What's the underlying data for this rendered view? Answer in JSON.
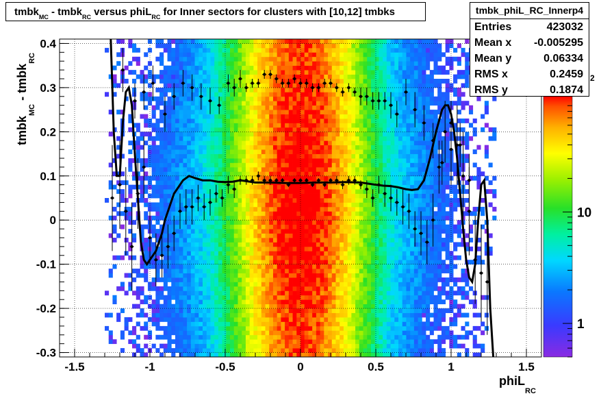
{
  "chart_data": {
    "type": "heatmap",
    "title_parts": [
      "tmbk",
      "MC",
      " - tmbk",
      "RC",
      " versus phiL",
      "RC",
      " for Inner sectors for clusters with [10,12] tmbks"
    ],
    "xlabel_main": "phiL",
    "xlabel_sub": "RC",
    "ylabel_parts": [
      "tmbk",
      "MC",
      " - tmbk",
      "RC"
    ],
    "xlim": [
      -1.6,
      1.6
    ],
    "ylim": [
      -0.31,
      0.41
    ],
    "x_ticks": [
      -1.5,
      -1,
      -0.5,
      0,
      0.5,
      1,
      1.5
    ],
    "x_tick_labels": [
      "-1.5",
      "-1",
      "-0.5",
      "0",
      "0.5",
      "1",
      "1.5"
    ],
    "y_ticks": [
      -0.3,
      -0.2,
      -0.1,
      0,
      0.1,
      0.2,
      0.3,
      0.4
    ],
    "y_tick_labels": [
      "-0.3",
      "-0.2",
      "-0.1",
      "0",
      "0.1",
      "0.2",
      "0.3",
      "0.4"
    ],
    "colorbar_log": true,
    "colorbar_range": [
      0.5,
      110
    ],
    "colorbar_ticks": [
      1,
      10
    ],
    "colorbar_tick_labels": [
      "1",
      "10"
    ],
    "colorbar_exponent_label": "2",
    "grid": true,
    "stats": {
      "name": "tmbk_phiL_RC_Innerp4",
      "rows": [
        {
          "label": "Entries",
          "value": "423032"
        },
        {
          "label": "Mean x",
          "value": "-0.005295"
        },
        {
          "label": "Mean y",
          "value": "0.06334"
        },
        {
          "label": "RMS x",
          "value": "0.2459"
        },
        {
          "label": "RMS y",
          "value": "0.1874"
        }
      ]
    },
    "profile_lower": {
      "x": [
        -1.25,
        -1.2,
        -1.16,
        -1.12,
        -1.08,
        -1.04,
        -1.0,
        -0.96,
        -0.92,
        -0.88,
        -0.84,
        -0.8,
        -0.76,
        -0.72,
        -0.68,
        -0.64,
        -0.6,
        -0.56,
        -0.52,
        -0.48,
        -0.44,
        -0.4,
        -0.36,
        -0.32,
        -0.28,
        -0.24,
        -0.2,
        -0.16,
        -0.12,
        -0.08,
        -0.04,
        0.0,
        0.04,
        0.08,
        0.12,
        0.16,
        0.2,
        0.24,
        0.28,
        0.32,
        0.36,
        0.4,
        0.44,
        0.48,
        0.52,
        0.56,
        0.6,
        0.64,
        0.68,
        0.72,
        0.76,
        0.8,
        0.84,
        0.88,
        0.92,
        0.96,
        1.0,
        1.04,
        1.08,
        1.12,
        1.16,
        1.2,
        1.24
      ],
      "y": [
        0.05,
        0.08,
        0.02,
        -0.06,
        0.06,
        0.12,
        -0.04,
        -0.09,
        -0.08,
        -0.06,
        -0.03,
        0.02,
        0.03,
        0.03,
        0.05,
        0.03,
        0.04,
        0.06,
        0.05,
        0.08,
        0.07,
        0.09,
        0.09,
        0.09,
        0.1,
        0.09,
        0.09,
        0.09,
        0.09,
        0.08,
        0.09,
        0.09,
        0.09,
        0.08,
        0.09,
        0.08,
        0.09,
        0.09,
        0.08,
        0.09,
        0.09,
        0.08,
        0.07,
        0.05,
        0.08,
        0.06,
        0.05,
        0.04,
        0.03,
        0.02,
        -0.02,
        -0.03,
        -0.05,
        0.0,
        0.12,
        0.2,
        0.16,
        0.17,
        0.1,
        0.02,
        -0.09,
        -0.12,
        -0.14
      ],
      "yerr": [
        0.12,
        0.1,
        0.1,
        0.1,
        0.08,
        0.07,
        0.06,
        0.06,
        0.05,
        0.05,
        0.04,
        0.04,
        0.04,
        0.04,
        0.03,
        0.03,
        0.03,
        0.02,
        0.02,
        0.02,
        0.02,
        0.01,
        0.01,
        0.01,
        0.01,
        0.01,
        0.01,
        0.005,
        0.005,
        0.005,
        0.005,
        0.005,
        0.005,
        0.005,
        0.005,
        0.005,
        0.005,
        0.01,
        0.01,
        0.01,
        0.01,
        0.01,
        0.02,
        0.02,
        0.02,
        0.03,
        0.03,
        0.03,
        0.04,
        0.04,
        0.04,
        0.05,
        0.05,
        0.06,
        0.06,
        0.07,
        0.08,
        0.09,
        0.1,
        0.1,
        0.1,
        0.11,
        0.12
      ]
    },
    "profile_upper": {
      "x": [
        -1.18,
        -1.1,
        -1.04,
        -0.98,
        -0.9,
        -0.84,
        -0.78,
        -0.72,
        -0.66,
        -0.6,
        -0.54,
        -0.48,
        -0.44,
        -0.4,
        -0.36,
        -0.32,
        -0.28,
        -0.24,
        -0.2,
        -0.16,
        -0.12,
        -0.08,
        -0.04,
        0.0,
        0.04,
        0.08,
        0.12,
        0.16,
        0.2,
        0.24,
        0.28,
        0.32,
        0.36,
        0.4,
        0.44,
        0.48,
        0.52,
        0.56,
        0.6,
        0.64,
        0.7,
        0.76,
        0.82,
        0.88,
        0.94,
        1.0,
        1.06,
        1.12
      ],
      "y": [
        0.34,
        0.27,
        0.29,
        0.31,
        0.24,
        0.28,
        0.31,
        0.3,
        0.28,
        0.27,
        0.26,
        0.31,
        0.3,
        0.32,
        0.3,
        0.31,
        0.31,
        0.33,
        0.33,
        0.32,
        0.31,
        0.31,
        0.32,
        0.31,
        0.31,
        0.3,
        0.3,
        0.31,
        0.31,
        0.3,
        0.29,
        0.3,
        0.29,
        0.28,
        0.28,
        0.27,
        0.27,
        0.27,
        0.26,
        0.24,
        0.29,
        0.25,
        0.22,
        0.18,
        0.13,
        0.22,
        0.17,
        0.09
      ],
      "yerr": [
        0.05,
        0.04,
        0.04,
        0.04,
        0.04,
        0.03,
        0.03,
        0.03,
        0.03,
        0.03,
        0.02,
        0.02,
        0.02,
        0.02,
        0.01,
        0.01,
        0.01,
        0.01,
        0.01,
        0.01,
        0.01,
        0.01,
        0.01,
        0.01,
        0.01,
        0.01,
        0.01,
        0.01,
        0.01,
        0.01,
        0.01,
        0.01,
        0.01,
        0.02,
        0.02,
        0.02,
        0.02,
        0.02,
        0.03,
        0.03,
        0.03,
        0.04,
        0.04,
        0.04,
        0.05,
        0.05,
        0.05,
        0.06
      ]
    },
    "fit_curve": {
      "x": [
        -1.26,
        -1.24,
        -1.22,
        -1.2,
        -1.18,
        -1.16,
        -1.14,
        -1.12,
        -1.1,
        -1.08,
        -1.06,
        -1.04,
        -1.02,
        -1.0,
        -0.98,
        -0.96,
        -0.94,
        -0.92,
        -0.9,
        -0.88,
        -0.86,
        -0.84,
        -0.82,
        -0.8,
        -0.78,
        -0.76,
        -0.74,
        -0.7,
        -0.65,
        -0.6,
        -0.55,
        -0.5,
        -0.45,
        -0.4,
        -0.3,
        -0.2,
        -0.1,
        0.0,
        0.1,
        0.2,
        0.3,
        0.4,
        0.5,
        0.55,
        0.6,
        0.65,
        0.7,
        0.74,
        0.78,
        0.82,
        0.86,
        0.9,
        0.94,
        0.96,
        0.98,
        1.0,
        1.02,
        1.04,
        1.06,
        1.08,
        1.1,
        1.12,
        1.14,
        1.16,
        1.18,
        1.2,
        1.22,
        1.24,
        1.26,
        1.28
      ],
      "y": [
        0.41,
        0.2,
        0.1,
        0.1,
        0.22,
        0.29,
        0.3,
        0.26,
        0.15,
        0.05,
        -0.05,
        -0.09,
        -0.1,
        -0.09,
        -0.08,
        -0.07,
        -0.05,
        -0.03,
        0.0,
        0.02,
        0.04,
        0.06,
        0.07,
        0.08,
        0.09,
        0.095,
        0.1,
        0.095,
        0.09,
        0.09,
        0.087,
        0.086,
        0.087,
        0.09,
        0.085,
        0.085,
        0.084,
        0.084,
        0.085,
        0.085,
        0.086,
        0.085,
        0.08,
        0.078,
        0.077,
        0.074,
        0.07,
        0.068,
        0.07,
        0.09,
        0.14,
        0.2,
        0.25,
        0.26,
        0.26,
        0.24,
        0.2,
        0.14,
        0.06,
        -0.02,
        -0.09,
        -0.13,
        -0.14,
        -0.1,
        0.0,
        0.08,
        0.09,
        0.0,
        -0.2,
        -0.31
      ]
    }
  }
}
